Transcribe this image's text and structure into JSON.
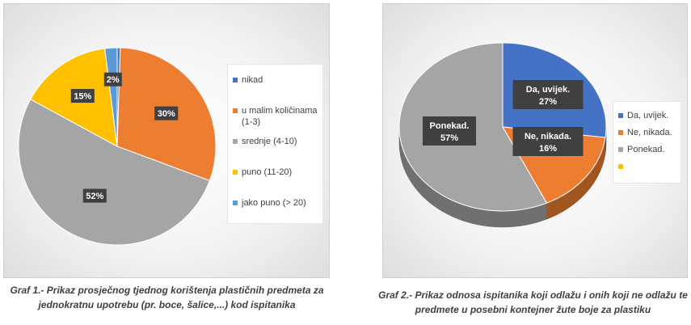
{
  "chart_data": [
    {
      "type": "pie",
      "categories": [
        "nikad",
        "u malim količinama (1-3)",
        "srednje (4-10)",
        "puno (11-20)",
        "jako puno (> 20)"
      ],
      "values": [
        0.5,
        30,
        52,
        15,
        2
      ],
      "data_labels": [
        "",
        "30%",
        "52%",
        "15%",
        "2%"
      ],
      "colors": [
        "#4472C4",
        "#ED7D31",
        "#A5A5A5",
        "#FFC000",
        "#5B9BD5"
      ],
      "legend_position": "right",
      "title": ""
    },
    {
      "type": "pie",
      "style": "3d",
      "categories": [
        "Da, uvijek.",
        "Ne, nikada.",
        "Ponekad.",
        ""
      ],
      "values": [
        27,
        16,
        57,
        0
      ],
      "data_labels": [
        "Da, uvijek.\n27%",
        "Ne, nikada.\n16%",
        "Ponekad.\n57%",
        ""
      ],
      "colors": [
        "#4472C4",
        "#ED7D31",
        "#A5A5A5",
        "#FFC000"
      ],
      "legend_position": "right",
      "title": ""
    }
  ],
  "captions": [
    "Graf 1.- Prikaz prosječnog tjednog korištenja plastičnih predmeta za jednokratnu upotrebu (pr. boce, šalice,...) kod ispitanika",
    "Graf 2.- Prikaz odnosa ispitanika koji odlažu i onih koji ne odlažu te predmete u posebni kontejner žute boje za plastiku"
  ]
}
